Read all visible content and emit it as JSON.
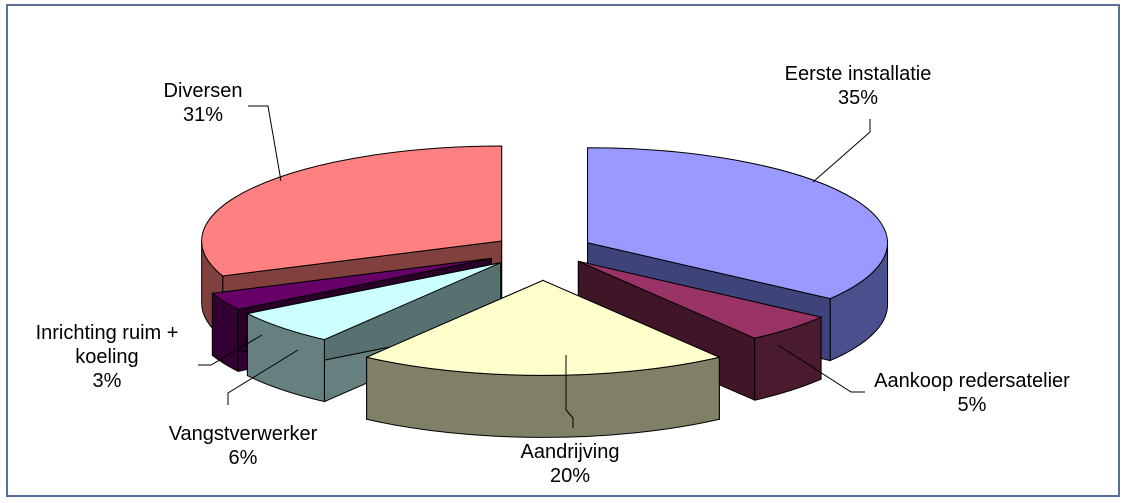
{
  "chart_data": {
    "type": "pie",
    "title": "",
    "slices": [
      {
        "label": "Eerste installatie",
        "label_lines": [
          "Eerste installatie"
        ],
        "value": 35,
        "value_label": "35%",
        "color": "#9999ff",
        "shade": "#4a4f8e",
        "shade_dark": "#3e437a"
      },
      {
        "label": "Aankoop redersatelier",
        "label_lines": [
          "Aankoop redersatelier"
        ],
        "value": 5,
        "value_label": "5%",
        "color": "#993366",
        "shade": "#4a1a2e",
        "shade_dark": "#3f1527"
      },
      {
        "label": "Aandrijving",
        "label_lines": [
          "Aandrijving"
        ],
        "value": 20,
        "value_label": "20%",
        "color": "#ffffcc",
        "shade": "#808066",
        "shade_dark": "#6e6e58"
      },
      {
        "label": "Vangstverwerker",
        "label_lines": [
          "Vangstverwerker"
        ],
        "value": 6,
        "value_label": "6%",
        "color": "#ccffff",
        "shade": "#668080",
        "shade_dark": "#577070"
      },
      {
        "label": "Inrichting ruim + koeling",
        "label_lines": [
          "Inrichting ruim +",
          "koeling"
        ],
        "value": 3,
        "value_label": "3%",
        "color": "#660066",
        "shade": "#330033",
        "shade_dark": "#280028"
      },
      {
        "label": "Diversen",
        "label_lines": [
          "Diversen"
        ],
        "value": 31,
        "value_label": "31%",
        "color": "#ff8080",
        "shade": "#80403e",
        "shade_dark": "#6e3634"
      }
    ],
    "legend": "none",
    "style": "3d-exploded"
  }
}
